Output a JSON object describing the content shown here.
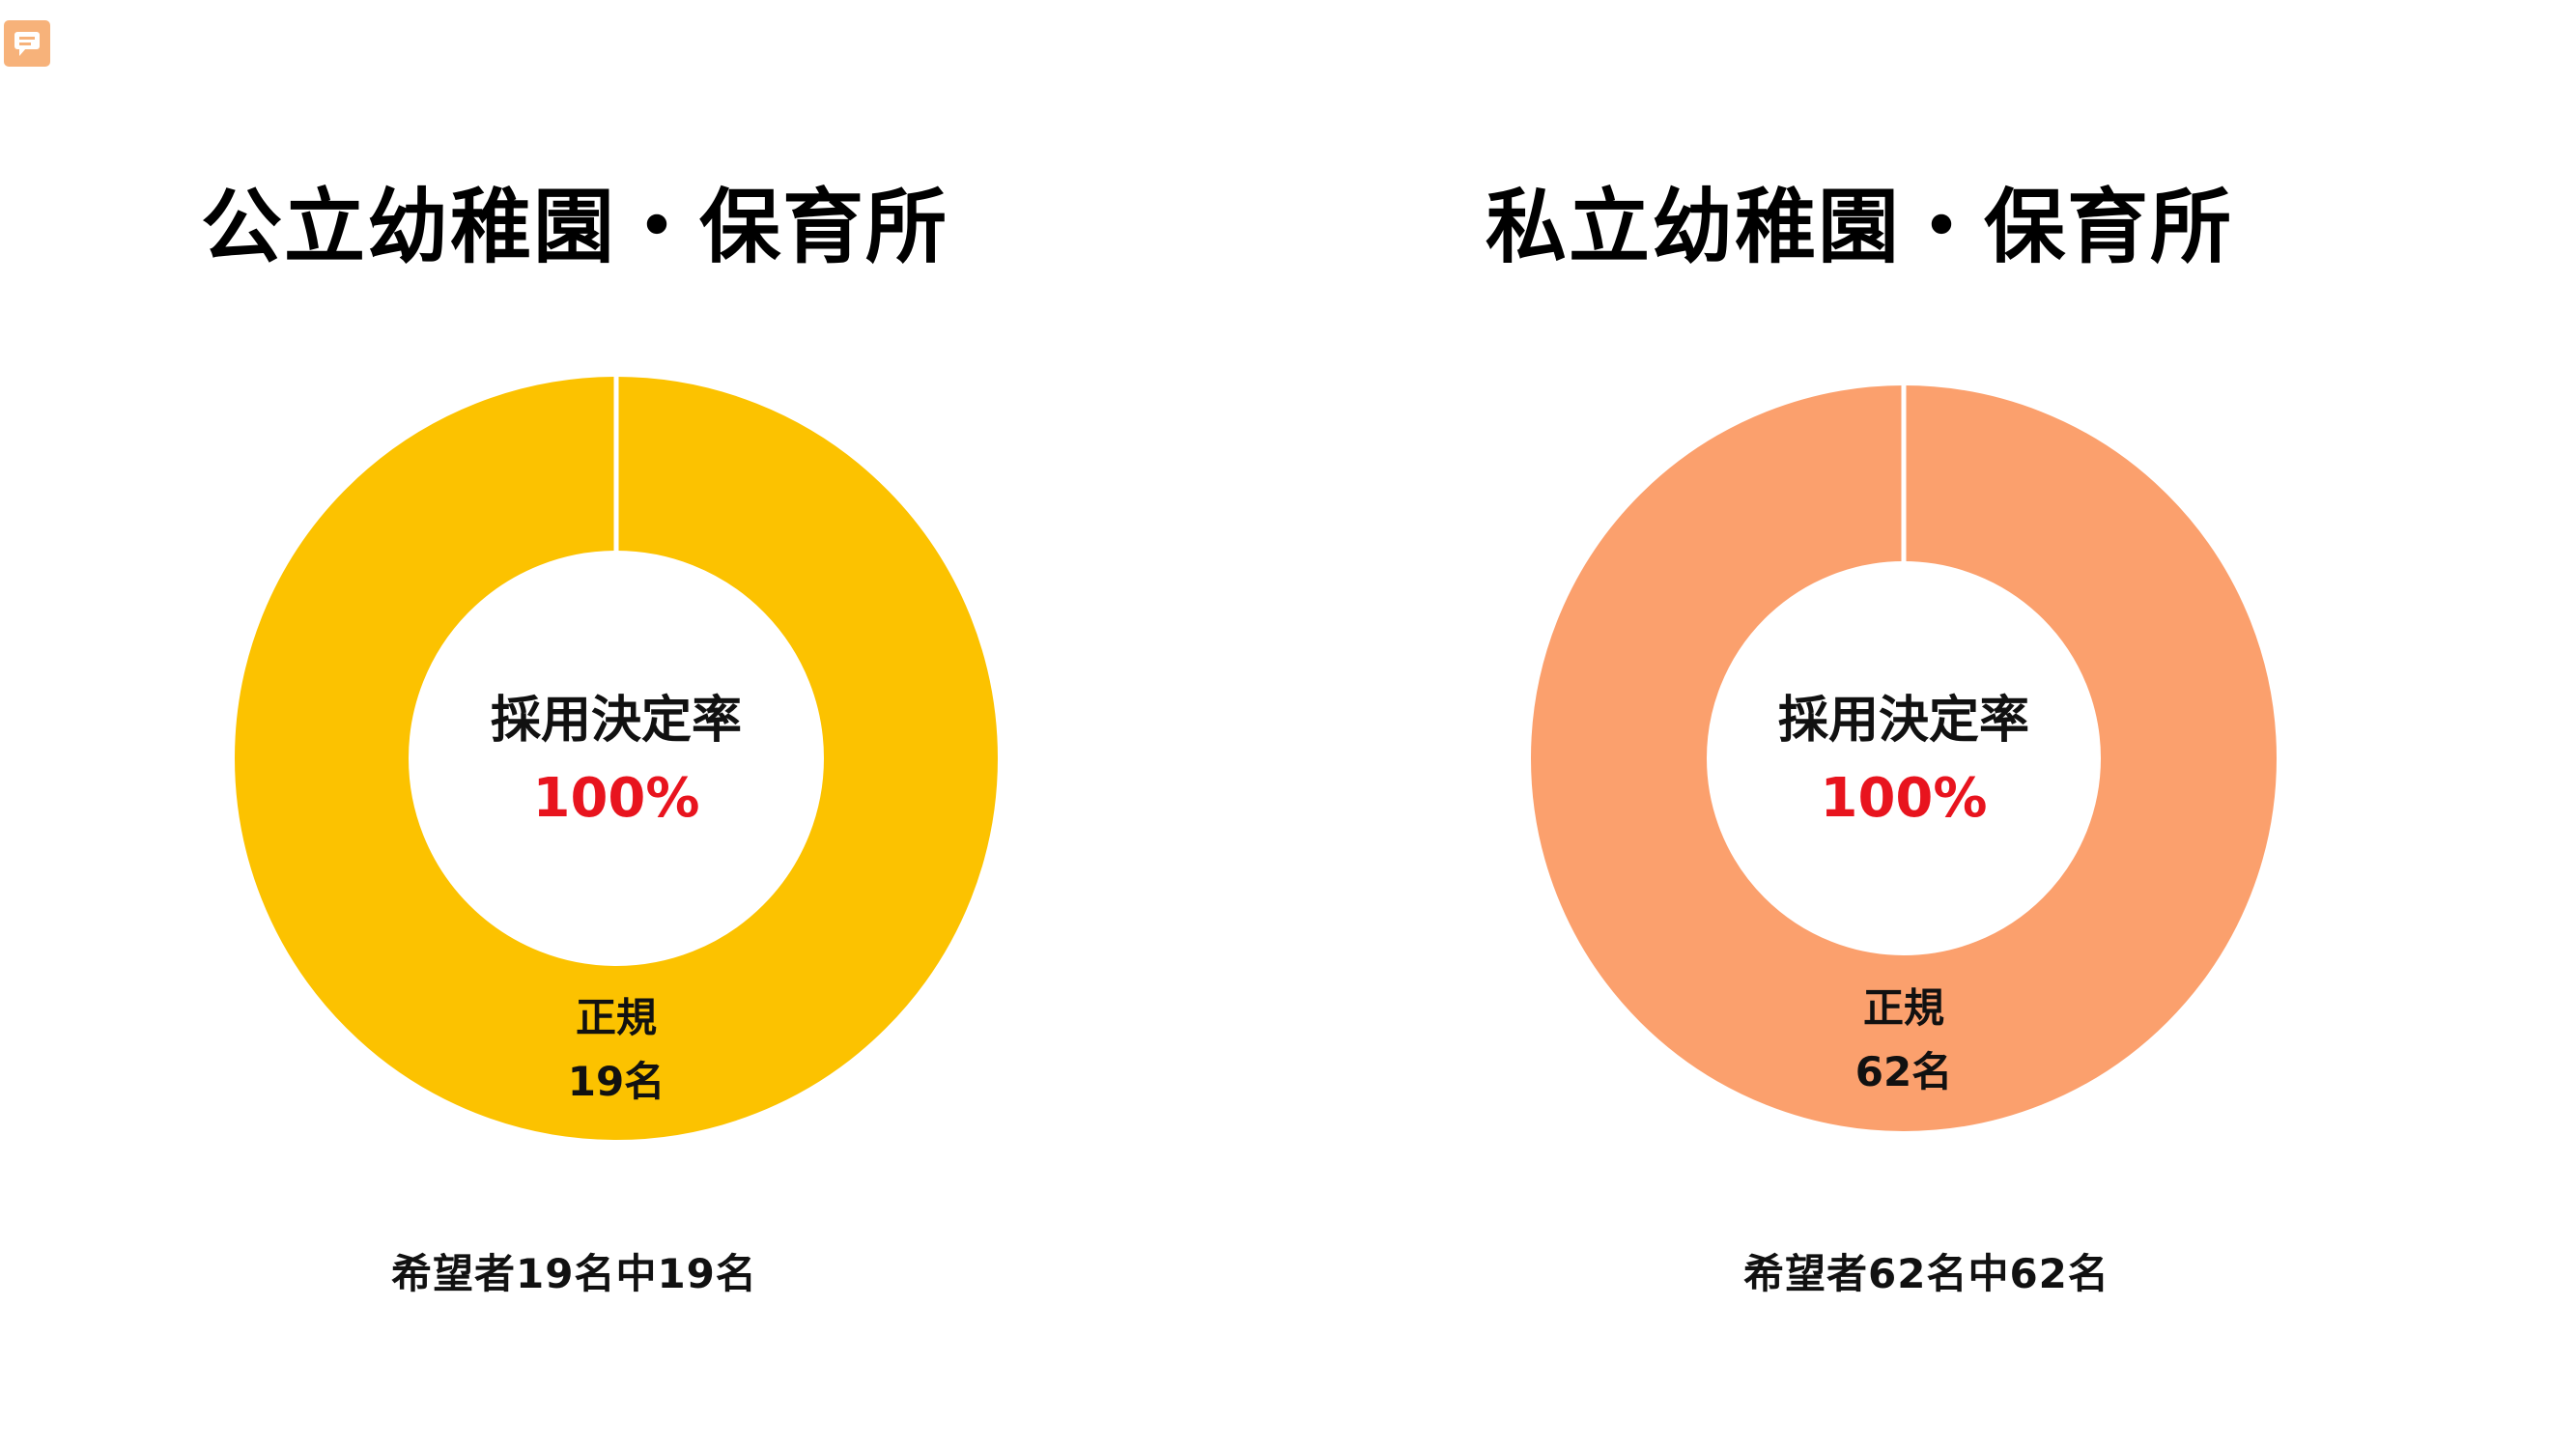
{
  "icons": {
    "comment": "comment-icon"
  },
  "chart_data": [
    {
      "type": "pie",
      "title": "公立幼稚園・保育所",
      "center_label": "採用決定率",
      "center_value": "100%",
      "categories": [
        "正規"
      ],
      "values": [
        19
      ],
      "slice_labels": [
        {
          "name": "正規",
          "value": "19名"
        }
      ],
      "color": "#FCC200",
      "center_value_color": "#E8141E",
      "footnote": "希望者19名中19名"
    },
    {
      "type": "pie",
      "title": "私立幼稚園・保育所",
      "center_label": "採用決定率",
      "center_value": "100%",
      "categories": [
        "正規"
      ],
      "values": [
        62
      ],
      "slice_labels": [
        {
          "name": "正規",
          "value": "62名"
        }
      ],
      "color": "#FBA06D",
      "center_value_color": "#E8141E",
      "footnote": "希望者62名中62名"
    }
  ]
}
